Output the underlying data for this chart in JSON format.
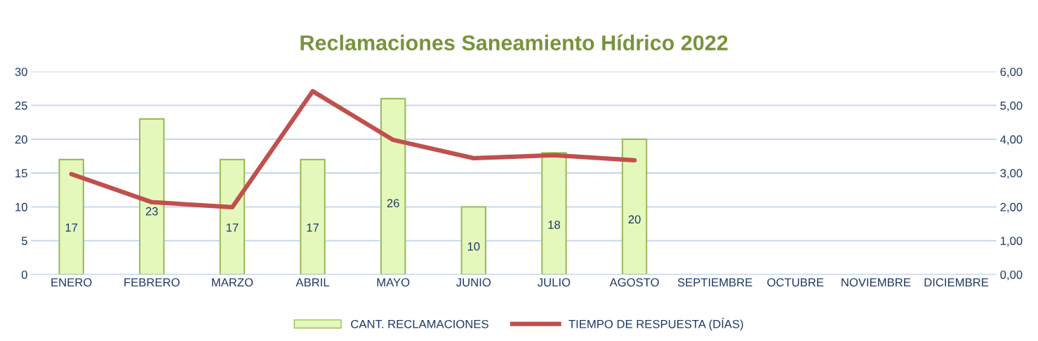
{
  "chart_data": {
    "type": "bar",
    "title": "Reclamaciones Saneamiento Hídrico 2022",
    "categories": [
      "ENERO",
      "FEBRERO",
      "MARZO",
      "ABRIL",
      "MAYO",
      "JUNIO",
      "JULIO",
      "AGOSTO",
      "SEPTIEMBRE",
      "OCTUBRE",
      "NOVIEMBRE",
      "DICIEMBRE"
    ],
    "series": [
      {
        "name": "CANT. RECLAMACIONES",
        "color": "#e4f8bc",
        "values": [
          17,
          23,
          17,
          17,
          26,
          10,
          18,
          20,
          null,
          null,
          null,
          null
        ],
        "value_labels": [
          "17",
          "23",
          "17",
          "17",
          "26",
          "10",
          "18",
          "20",
          null,
          null,
          null,
          null
        ]
      },
      {
        "name": "TIEMPO DE RESPUESTA (DÍAS)",
        "type": "line",
        "axis": "y2",
        "color": "#c0504d",
        "values": [
          2.97,
          2.14,
          1.99,
          5.42,
          3.98,
          3.44,
          3.53,
          3.38,
          null,
          null,
          null,
          null
        ]
      }
    ],
    "ylim": [
      0,
      30
    ],
    "yticks": [
      0,
      5,
      10,
      15,
      20,
      25,
      30
    ],
    "y2lim": [
      0,
      6
    ],
    "y2ticks": [
      {
        "value": 0,
        "label": "0,00"
      },
      {
        "value": 1,
        "label": "1,00"
      },
      {
        "value": 2,
        "label": "2,00"
      },
      {
        "value": 3,
        "label": "3,00"
      },
      {
        "value": 4,
        "label": "4,00"
      },
      {
        "value": 5,
        "label": "5,00"
      },
      {
        "value": 6,
        "label": "6,00"
      }
    ],
    "grid": "y",
    "legend": "bottom",
    "marker": "none",
    "line_style": "solid"
  }
}
